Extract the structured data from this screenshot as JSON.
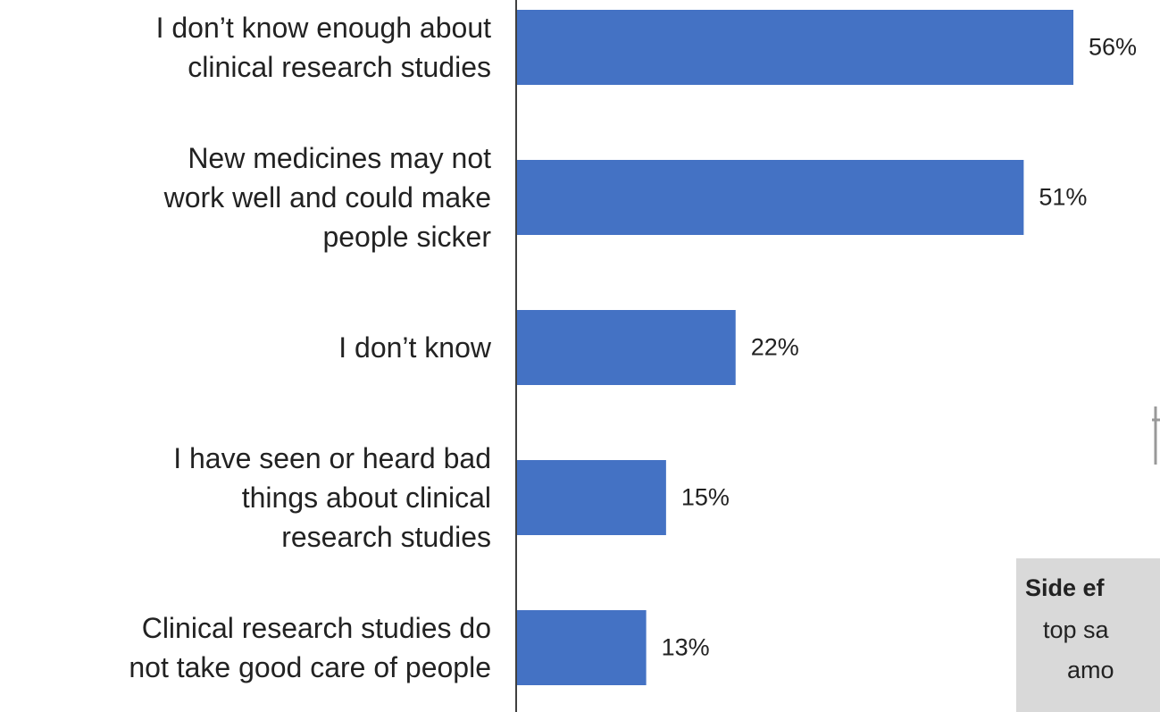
{
  "chart_data": {
    "type": "barh",
    "categories": [
      "I don’t know enough about\nclinical research studies",
      "New medicines may not\nwork well and could make\npeople sicker",
      "I don’t know",
      "I have seen or heard bad\nthings about clinical\nresearch studies",
      "Clinical research studies do\nnot take good care of people"
    ],
    "values": [
      56,
      51,
      22,
      15,
      13
    ],
    "value_labels": [
      "56%",
      "51%",
      "22%",
      "15%",
      "13%"
    ],
    "color": "#4472c4",
    "annotation": [
      "Side ef",
      "top sa",
      "amo"
    ]
  }
}
